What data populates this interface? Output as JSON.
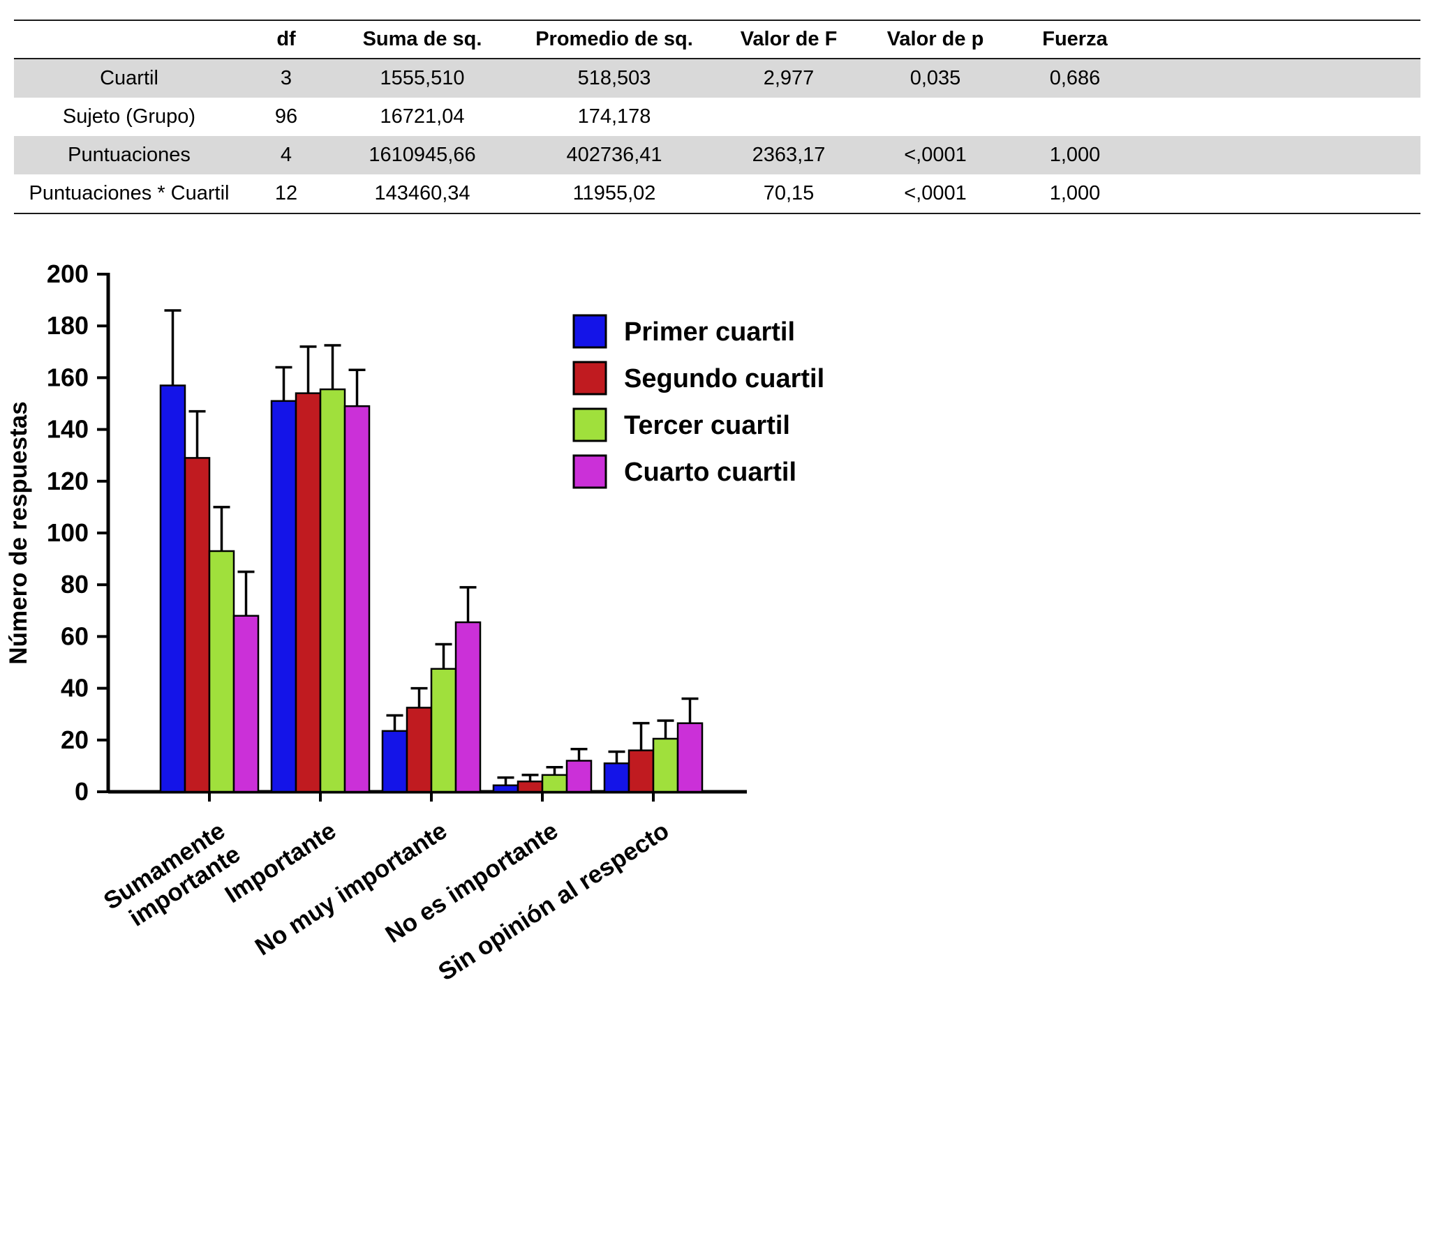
{
  "table": {
    "columns": [
      "",
      "df",
      "Suma de sq.",
      "Promedio de sq.",
      "Valor de F",
      "Valor de p",
      "Fuerza"
    ],
    "rows": [
      {
        "label": "Cuartil",
        "values": [
          "3",
          "1555,510",
          "518,503",
          "2,977",
          "0,035",
          "0,686"
        ],
        "shaded": true
      },
      {
        "label": "Sujeto (Grupo)",
        "values": [
          "96",
          "16721,04",
          "174,178",
          "",
          "",
          ""
        ],
        "shaded": false
      },
      {
        "label": "Puntuaciones",
        "values": [
          "4",
          "1610945,66",
          "402736,41",
          "2363,17",
          "<,0001",
          "1,000"
        ],
        "shaded": true
      },
      {
        "label": "Puntuaciones * Cuartil",
        "values": [
          "12",
          "143460,34",
          "11955,02",
          "70,15",
          "<,0001",
          "1,000"
        ],
        "shaded": false
      }
    ],
    "shaded_color": "#d9d9d9"
  },
  "chart_data": {
    "type": "bar",
    "title": "",
    "xlabel": "",
    "ylabel": "Número de respuestas",
    "ylim": [
      0,
      200
    ],
    "ytick_step": 20,
    "grid": false,
    "legend_position": "upper right",
    "categories": [
      "Sumamente\nimportante",
      "Importante",
      "No muy importante",
      "No es importante",
      "Sin opinión al respecto"
    ],
    "series": [
      {
        "name": "Primer cuartil",
        "color": "#1414e8",
        "values": [
          157,
          151,
          23.5,
          2.5,
          11
        ],
        "errors": [
          29,
          13,
          6,
          3,
          4.5
        ]
      },
      {
        "name": "Segundo cuartil",
        "color": "#c01b20",
        "values": [
          129,
          154,
          32.5,
          4,
          16
        ],
        "errors": [
          18,
          18,
          7.5,
          2.5,
          10.5
        ]
      },
      {
        "name": "Tercer cuartil",
        "color": "#a0e03c",
        "values": [
          93,
          155.5,
          47.5,
          6.5,
          20.5
        ],
        "errors": [
          17,
          17,
          9.5,
          3,
          7
        ]
      },
      {
        "name": "Cuarto cuartil",
        "color": "#cb30d8",
        "values": [
          68,
          149,
          65.5,
          12,
          26.5
        ],
        "errors": [
          17,
          14,
          13.5,
          4.5,
          9.5
        ]
      }
    ]
  }
}
